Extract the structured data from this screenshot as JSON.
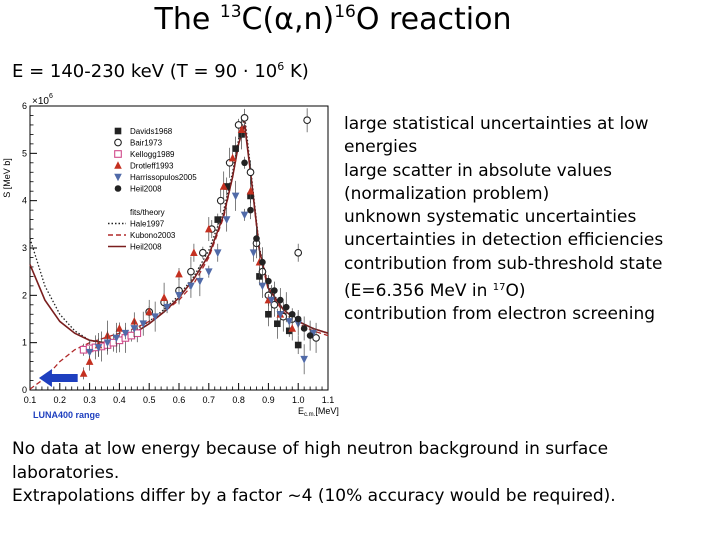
{
  "title": {
    "prefix": "The ",
    "sup1": "13",
    "mid": "C(α,n)",
    "sup2": "16",
    "suffix": "O reaction"
  },
  "energy_range": {
    "text": "E = 140-230 keV (T = 90 · 10",
    "exp": "6",
    "unit": " K)"
  },
  "bullets": [
    {
      "text": "large statistical uncertainties at low energies"
    },
    {
      "text": "large scatter in absolute values (normalization problem)"
    },
    {
      "text": "unknown systematic uncertainties"
    },
    {
      "text": "uncertainties in detection efficiencies"
    },
    {
      "pre": "contribution from sub-threshold state (E=6.356 MeV in ",
      "sup": "17",
      "post": "O)"
    },
    {
      "text": "contribution from electron screening"
    }
  ],
  "conclusions": [
    "No data at low energy because of high neutron background in surface laboratories.",
    "Extrapolations differ by a factor ~4 (10% accuracy would be required)."
  ],
  "chart_data": {
    "type": "scatter",
    "ylabel": "S [MeV b]",
    "xlabel": "E",
    "xlabel_sub": "c.m.",
    "xlabel_unit": "[MeV]",
    "y_scale_label": "×10",
    "y_scale_exp": "6",
    "xlim": [
      0.1,
      1.1
    ],
    "ylim": [
      0,
      6
    ],
    "xticks": [
      0.1,
      0.2,
      0.3,
      0.4,
      0.5,
      0.6,
      0.7,
      0.8,
      0.9,
      1.0,
      1.1
    ],
    "xtick_labels": [
      "0.1",
      "0.2",
      "0.3",
      "0.4",
      "0.5",
      "0.6",
      "0.7",
      "0.8",
      "0.9",
      "1.0",
      "1.1"
    ],
    "yticks": [
      0,
      1,
      2,
      3,
      4,
      5,
      6
    ],
    "ytick_labels": [
      "0",
      "1",
      "2",
      "3",
      "4",
      "5",
      "6"
    ],
    "legend_position": "top-left",
    "range_arrow_label": "LUNA400 range",
    "range_arrow_x": [
      0.13,
      0.26
    ],
    "arrow_color": "#1e3fbf",
    "series": [
      {
        "name": "Davids1968",
        "marker": "square",
        "color": "#222222",
        "x": [
          0.73,
          0.76,
          0.79,
          0.81,
          0.84,
          0.87,
          0.9,
          0.93,
          0.97,
          1.0
        ],
        "y": [
          3.6,
          4.3,
          5.1,
          5.4,
          4.1,
          2.4,
          1.6,
          1.4,
          1.25,
          0.95
        ]
      },
      {
        "name": "Bair1973",
        "marker": "circle-open",
        "color": "#222222",
        "x": [
          0.5,
          0.55,
          0.6,
          0.64,
          0.68,
          0.71,
          0.74,
          0.77,
          0.8,
          0.82,
          0.84,
          0.86,
          0.88,
          0.9,
          0.92,
          0.95,
          0.98,
          1.0,
          1.03,
          1.06
        ],
        "y": [
          1.65,
          1.85,
          2.1,
          2.5,
          2.9,
          3.4,
          4.0,
          4.8,
          5.6,
          5.75,
          4.6,
          3.1,
          2.5,
          2.0,
          1.8,
          1.55,
          1.5,
          2.9,
          5.7,
          1.1
        ]
      },
      {
        "name": "Kellogg1989",
        "marker": "square-open",
        "color": "#d04a8a",
        "x": [
          0.28,
          0.3,
          0.32,
          0.34,
          0.36,
          0.38,
          0.4,
          0.42,
          0.44,
          0.46
        ],
        "y": [
          0.85,
          0.88,
          0.9,
          0.92,
          0.95,
          1.0,
          1.05,
          1.1,
          1.15,
          1.2
        ]
      },
      {
        "name": "Drotleff1993",
        "marker": "triangle",
        "color": "#c43020",
        "x": [
          0.28,
          0.3,
          0.33,
          0.36,
          0.4,
          0.45,
          0.5,
          0.55,
          0.6,
          0.65,
          0.7,
          0.75,
          0.78,
          0.81,
          0.84,
          0.87,
          0.9,
          0.94,
          0.98
        ],
        "y": [
          0.35,
          0.6,
          0.95,
          1.15,
          1.3,
          1.45,
          1.65,
          1.95,
          2.45,
          2.9,
          3.4,
          4.3,
          4.9,
          5.5,
          4.2,
          2.7,
          1.9,
          1.6,
          1.3
        ]
      },
      {
        "name": "Harrissopulos2005",
        "marker": "triangle-down",
        "color": "#506aa8",
        "x": [
          0.3,
          0.33,
          0.36,
          0.39,
          0.42,
          0.45,
          0.48,
          0.52,
          0.56,
          0.6,
          0.64,
          0.67,
          0.7,
          0.73,
          0.76,
          0.79,
          0.82,
          0.85,
          0.88,
          0.91,
          0.94,
          0.97,
          1.0,
          1.02,
          1.05
        ],
        "y": [
          0.8,
          0.9,
          1.0,
          1.1,
          1.2,
          1.3,
          1.4,
          1.55,
          1.75,
          2.0,
          2.2,
          2.3,
          2.5,
          2.9,
          3.6,
          4.1,
          3.7,
          2.9,
          2.2,
          1.9,
          1.6,
          1.45,
          1.4,
          0.65,
          1.2
        ]
      },
      {
        "name": "Heil2008",
        "marker": "circle",
        "color": "#222222",
        "x": [
          0.82,
          0.84,
          0.86,
          0.88,
          0.9,
          0.92,
          0.94,
          0.96,
          0.98,
          1.0,
          1.02,
          1.04
        ],
        "y": [
          4.8,
          3.8,
          3.2,
          2.7,
          2.3,
          2.1,
          1.9,
          1.75,
          1.6,
          1.5,
          1.3,
          1.15
        ]
      }
    ],
    "fit_legend_title": "fits/theory",
    "fits": [
      {
        "name": "Hale1997",
        "style": "dotted",
        "color": "#222222",
        "x": [
          0.1,
          0.15,
          0.2,
          0.25,
          0.3,
          0.35,
          0.4,
          0.45,
          0.5,
          0.55,
          0.6,
          0.65,
          0.7,
          0.75,
          0.78,
          0.8,
          0.82,
          0.84,
          0.87,
          0.9,
          0.95,
          1.0,
          1.05,
          1.1
        ],
        "y": [
          3.2,
          2.2,
          1.6,
          1.25,
          1.05,
          1.0,
          1.1,
          1.25,
          1.45,
          1.7,
          2.0,
          2.4,
          2.95,
          3.8,
          4.6,
          5.3,
          5.8,
          4.7,
          3.0,
          2.2,
          1.7,
          1.45,
          1.3,
          1.2
        ]
      },
      {
        "name": "Kubono2003",
        "style": "dashed",
        "color": "#b02828",
        "x": [
          0.1,
          0.15,
          0.2,
          0.25,
          0.3,
          0.35,
          0.4,
          0.45,
          0.5,
          0.55,
          0.6,
          0.65,
          0.7,
          0.75,
          0.78,
          0.8,
          0.82,
          0.84,
          0.87,
          0.9,
          0.95,
          1.0,
          1.05,
          1.1
        ],
        "y": [
          0.02,
          0.25,
          0.6,
          0.85,
          1.0,
          1.1,
          1.2,
          1.3,
          1.45,
          1.65,
          1.9,
          2.25,
          2.8,
          3.65,
          4.5,
          5.2,
          5.7,
          4.6,
          2.9,
          2.1,
          1.65,
          1.4,
          1.25,
          1.15
        ]
      },
      {
        "name": "Heil2008",
        "style": "solid",
        "color": "#7a1e1e",
        "x": [
          0.1,
          0.15,
          0.2,
          0.25,
          0.3,
          0.35,
          0.4,
          0.45,
          0.5,
          0.55,
          0.6,
          0.65,
          0.7,
          0.75,
          0.78,
          0.8,
          0.82,
          0.84,
          0.87,
          0.9,
          0.95,
          1.0,
          1.05,
          1.1
        ],
        "y": [
          2.65,
          1.9,
          1.45,
          1.2,
          1.05,
          1.0,
          1.05,
          1.2,
          1.4,
          1.65,
          1.95,
          2.35,
          2.85,
          3.7,
          4.5,
          5.2,
          5.6,
          4.6,
          2.95,
          2.15,
          1.7,
          1.45,
          1.3,
          1.2
        ]
      }
    ]
  }
}
